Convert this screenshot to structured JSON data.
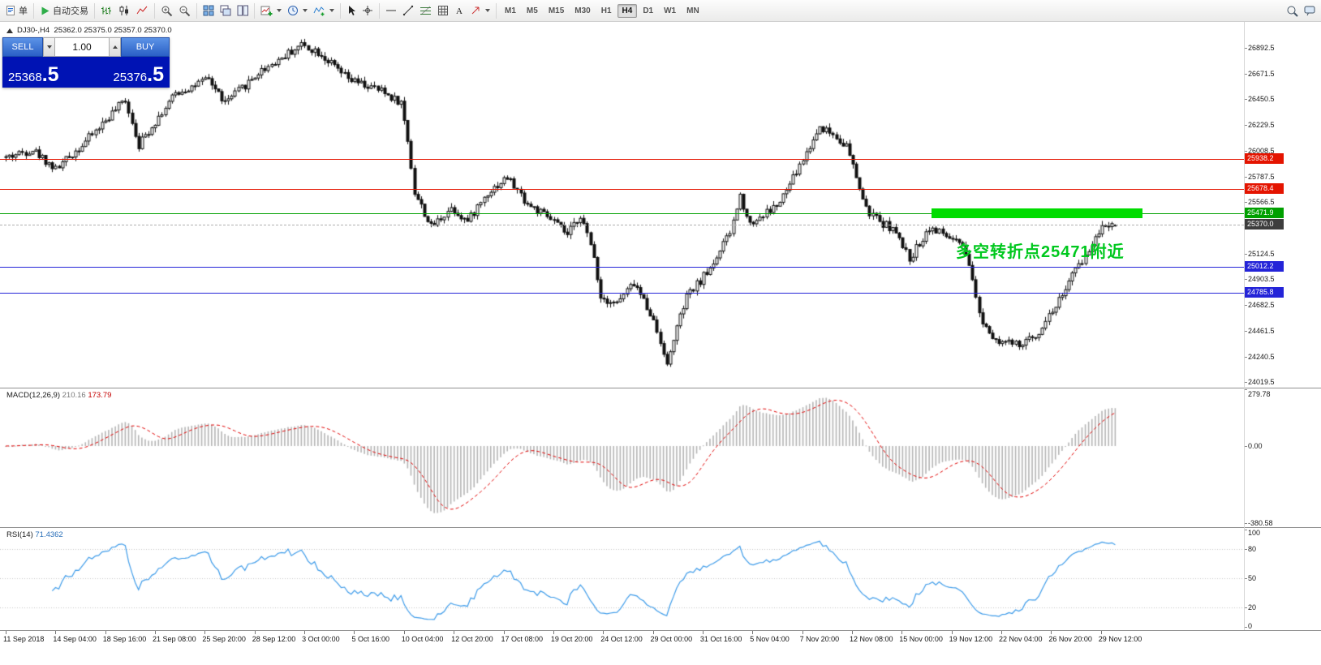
{
  "toolbar": {
    "new_order_label": "单",
    "autotrading_label": "自动交易",
    "timeframes": [
      "M1",
      "M5",
      "M15",
      "M30",
      "H1",
      "H4",
      "D1",
      "W1",
      "MN"
    ],
    "active_timeframe": "H4"
  },
  "trade_panel": {
    "sell_label": "SELL",
    "buy_label": "BUY",
    "lot_size": "1.00",
    "sell_price_main": "25368",
    "sell_price_frac": ".5",
    "buy_price_main": "25376",
    "buy_price_frac": ".5"
  },
  "chart": {
    "symbol_label": "DJ30-,H4",
    "ohlc_label": "25362.0 25375.0 25357.0 25370.0",
    "price_axis": [
      26892.5,
      26671.5,
      26450.5,
      26229.5,
      26008.5,
      25787.5,
      25566.5,
      25124.5,
      24903.5,
      24682.5,
      24461.5,
      24240.5,
      24019.5
    ],
    "levels": [
      {
        "name": "resistance-upper",
        "label": "25938.2",
        "price": 25938.2,
        "color": "#e41400",
        "line_color": "#e41400",
        "style": "solid"
      },
      {
        "name": "resistance-lower",
        "label": "25678.4",
        "price": 25678.4,
        "color": "#e41400",
        "line_color": "#e41400",
        "style": "solid"
      },
      {
        "name": "pivot-green",
        "label": "25471.9",
        "price": 25471.9,
        "color": "#00a000",
        "line_color": "#00a000",
        "style": "solid"
      },
      {
        "name": "current-bid",
        "label": "25370.0",
        "price": 25370.0,
        "color": "#3d3d3d",
        "line_color": "#b0b0b0",
        "style": "dashed"
      },
      {
        "name": "support-upper",
        "label": "25012.2",
        "price": 25012.2,
        "color": "#2424d8",
        "line_color": "#2424d8",
        "style": "solid"
      },
      {
        "name": "support-lower",
        "label": "24785.8",
        "price": 24785.8,
        "color": "#2424d8",
        "line_color": "#2424d8",
        "style": "solid"
      }
    ],
    "zone": {
      "price": 25471.9,
      "color": "#00dc00"
    },
    "annotation": {
      "text": "多空转折点25471附近",
      "color": "#00c81e"
    },
    "time_axis": [
      "11 Sep 2018",
      "14 Sep 04:00",
      "18 Sep 16:00",
      "21 Sep 08:00",
      "25 Sep 20:00",
      "28 Sep 12:00",
      "3 Oct 00:00",
      "5 Oct 16:00",
      "10 Oct 04:00",
      "12 Oct 20:00",
      "17 Oct 08:00",
      "19 Oct 20:00",
      "24 Oct 12:00",
      "29 Oct 00:00",
      "31 Oct 16:00",
      "5 Nov 04:00",
      "7 Nov 20:00",
      "12 Nov 08:00",
      "15 Nov 00:00",
      "19 Nov 12:00",
      "22 Nov 04:00",
      "26 Nov 20:00",
      "29 Nov 12:00"
    ]
  },
  "macd": {
    "name": "MACD(12,26,9)",
    "value_main": "210.16",
    "value_signal": "173.79",
    "axis": [
      "279.78",
      "0.00",
      "-380.58"
    ],
    "histogram_color": "#b5b5b5",
    "signal_color": "#e00000"
  },
  "rsi": {
    "name": "RSI(14)",
    "value": "71.4362",
    "axis": [
      "100",
      "80",
      "50",
      "20",
      "0"
    ],
    "levels": [
      80,
      50,
      20
    ],
    "line_color": "#3d9be9"
  },
  "chart_data": {
    "type": "candlestick",
    "symbol": "DJ30-",
    "timeframe": "H4",
    "bar_count": 335,
    "price_range_visible": [
      24019.5,
      26892.5
    ],
    "last_bar": {
      "open": 25362.0,
      "high": 25375.0,
      "low": 25357.0,
      "close": 25370.0
    },
    "horizontal_lines": [
      25938.2,
      25678.4,
      25471.9,
      25012.2,
      24785.8
    ],
    "indicators": [
      {
        "type": "MACD",
        "params": [
          12,
          26,
          9
        ],
        "current": [
          210.16,
          173.79
        ]
      },
      {
        "type": "RSI",
        "params": [
          14
        ],
        "current": 71.4362
      }
    ],
    "noise_seed": 42,
    "noise_amplitude": 70,
    "wick_amplitude": 40,
    "trend_waypoints": [
      [
        0,
        25950
      ],
      [
        8,
        26020
      ],
      [
        15,
        25850
      ],
      [
        23,
        26060
      ],
      [
        36,
        26450
      ],
      [
        40,
        26060
      ],
      [
        51,
        26500
      ],
      [
        61,
        26620
      ],
      [
        66,
        26420
      ],
      [
        77,
        26700
      ],
      [
        89,
        26920
      ],
      [
        94,
        26860
      ],
      [
        103,
        26620
      ],
      [
        113,
        26520
      ],
      [
        119,
        26420
      ],
      [
        121,
        26100
      ],
      [
        123,
        25650
      ],
      [
        128,
        25350
      ],
      [
        134,
        25520
      ],
      [
        139,
        25400
      ],
      [
        145,
        25650
      ],
      [
        151,
        25780
      ],
      [
        157,
        25550
      ],
      [
        165,
        25400
      ],
      [
        169,
        25280
      ],
      [
        173,
        25460
      ],
      [
        177,
        25100
      ],
      [
        179,
        24750
      ],
      [
        184,
        24700
      ],
      [
        189,
        24870
      ],
      [
        194,
        24620
      ],
      [
        198,
        24290
      ],
      [
        199,
        24150
      ],
      [
        201,
        24400
      ],
      [
        205,
        24750
      ],
      [
        212,
        25000
      ],
      [
        218,
        25300
      ],
      [
        221,
        25620
      ],
      [
        224,
        25380
      ],
      [
        227,
        25440
      ],
      [
        233,
        25560
      ],
      [
        239,
        25880
      ],
      [
        243,
        26100
      ],
      [
        245,
        26220
      ],
      [
        249,
        26150
      ],
      [
        253,
        26050
      ],
      [
        256,
        25780
      ],
      [
        259,
        25500
      ],
      [
        263,
        25400
      ],
      [
        267,
        25340
      ],
      [
        272,
        25080
      ],
      [
        278,
        25350
      ],
      [
        284,
        25260
      ],
      [
        288,
        25180
      ],
      [
        291,
        24900
      ],
      [
        293,
        24600
      ],
      [
        296,
        24450
      ],
      [
        299,
        24380
      ],
      [
        305,
        24330
      ],
      [
        310,
        24420
      ],
      [
        316,
        24680
      ],
      [
        322,
        24980
      ],
      [
        326,
        25150
      ],
      [
        330,
        25380
      ],
      [
        334,
        25370
      ]
    ]
  }
}
